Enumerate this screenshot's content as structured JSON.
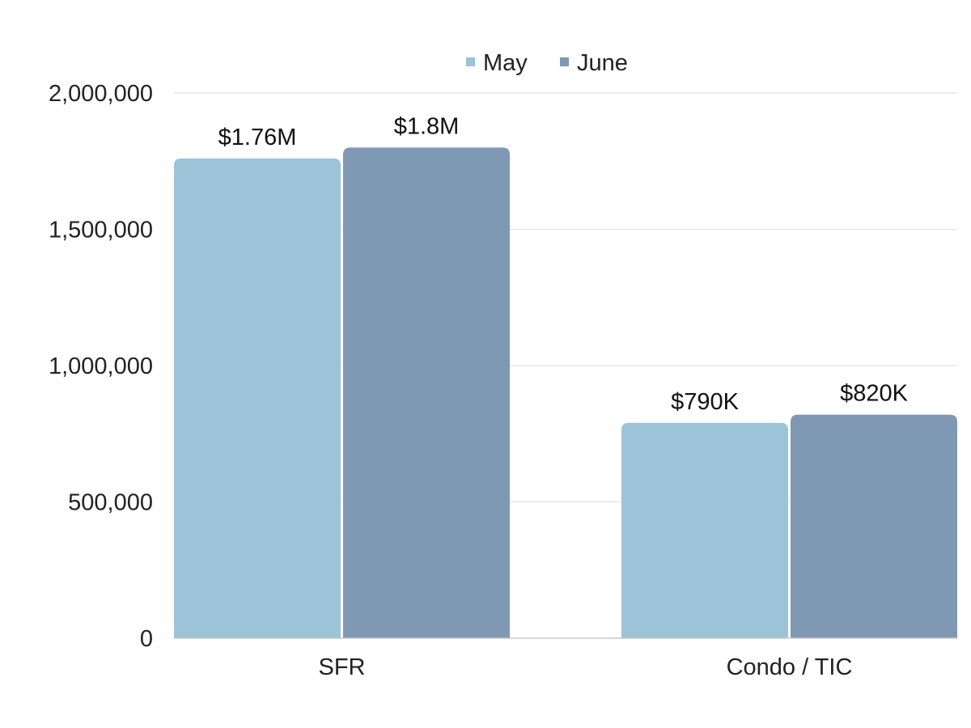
{
  "chart_data": {
    "type": "bar",
    "title": "",
    "xlabel": "",
    "ylabel": "",
    "categories": [
      "SFR",
      "Condo / TIC"
    ],
    "series": [
      {
        "name": "May",
        "color": "#9cc3d8",
        "values": [
          1760000,
          790000
        ],
        "labels": [
          "$1.76M",
          "$790K"
        ]
      },
      {
        "name": "June",
        "color": "#7f98b4",
        "values": [
          1800000,
          820000
        ],
        "labels": [
          "$1.8M",
          "$820K"
        ]
      }
    ],
    "ylim": [
      0,
      2000000
    ],
    "yticks": [
      0,
      500000,
      1000000,
      1500000,
      2000000
    ],
    "ytick_labels": [
      "0",
      "500,000",
      "1,000,000",
      "1,500,000",
      "2,000,000"
    ],
    "grid": true,
    "legend_position": "top-center"
  }
}
